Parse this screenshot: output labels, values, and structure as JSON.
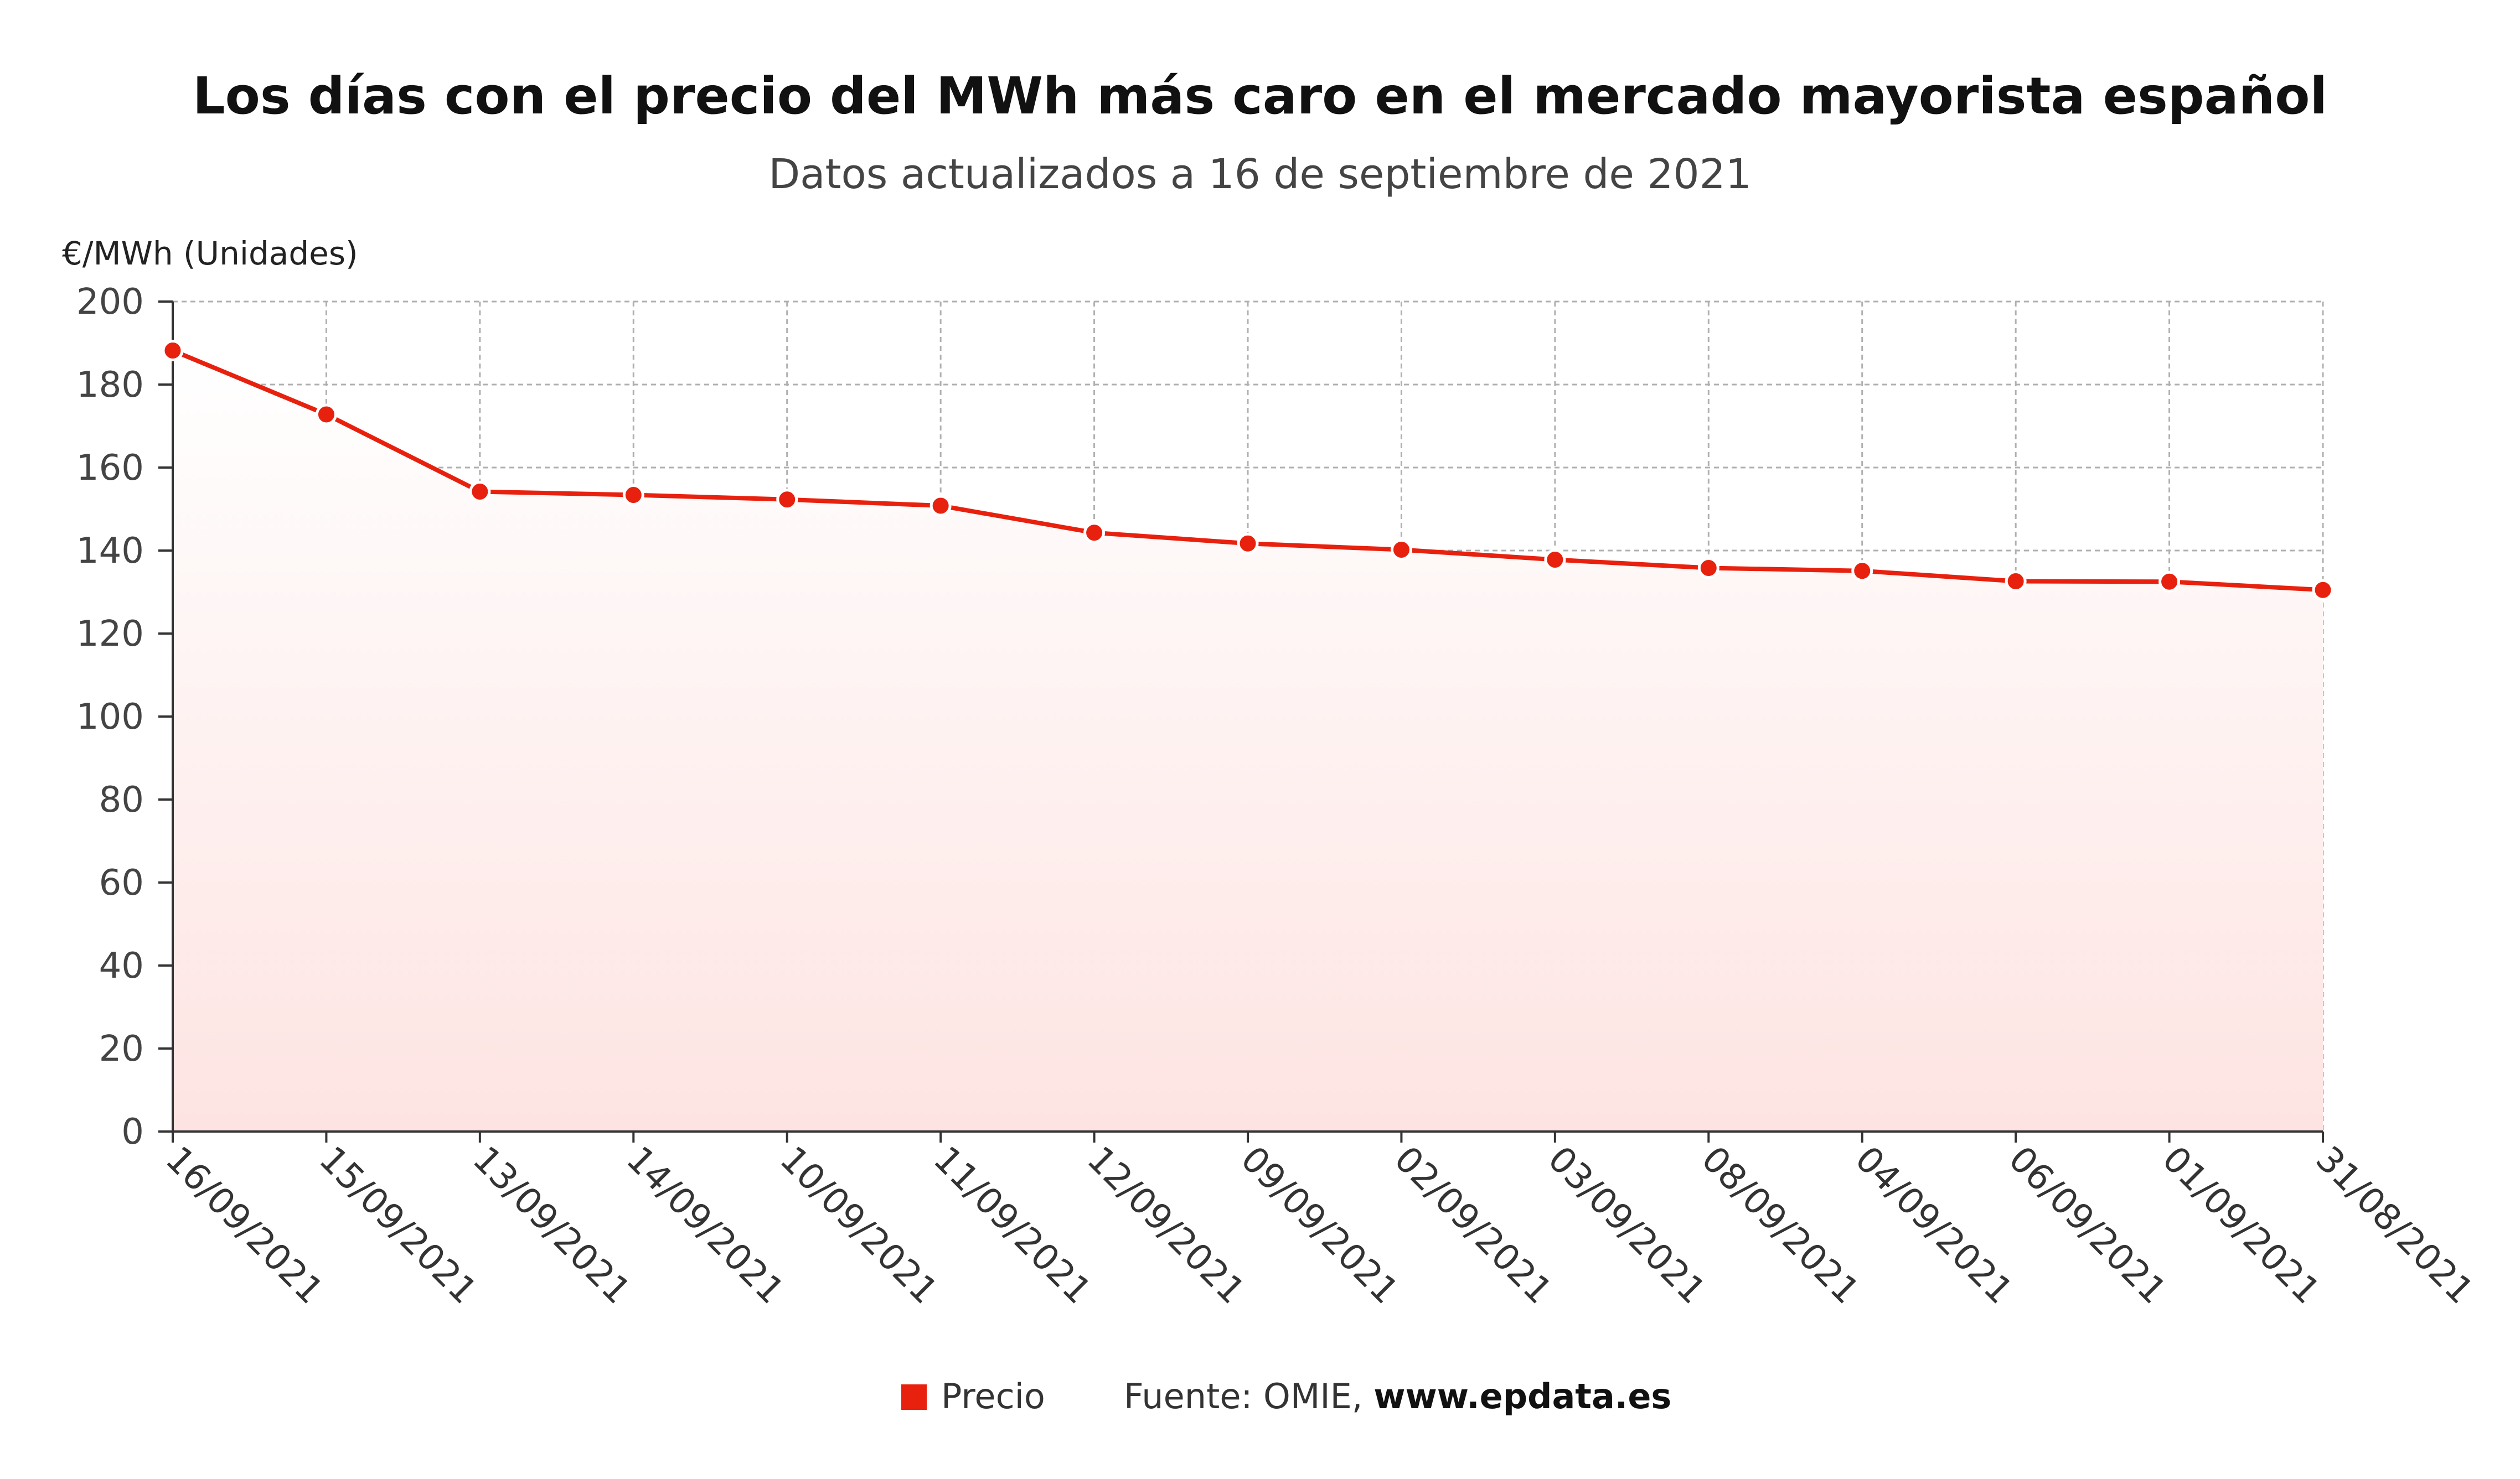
{
  "chart_data": {
    "type": "area",
    "title": "Los días con el precio del MWh más caro en el mercado mayorista español",
    "subtitle": "Datos actualizados a 16 de septiembre de 2021",
    "ylabel": "€/MWh (Unidades)",
    "xlabel": "",
    "ylim": [
      0,
      200
    ],
    "yticks": [
      0,
      20,
      40,
      60,
      80,
      100,
      120,
      140,
      160,
      180,
      200
    ],
    "grid": true,
    "legend_position": "bottom",
    "categories": [
      "16/09/2021",
      "15/09/2021",
      "13/09/2021",
      "14/09/2021",
      "10/09/2021",
      "11/09/2021",
      "12/09/2021",
      "09/09/2021",
      "02/09/2021",
      "03/09/2021",
      "08/09/2021",
      "04/09/2021",
      "06/09/2021",
      "01/09/2021",
      "31/08/2021"
    ],
    "series": [
      {
        "name": "Precio",
        "color": "#e8210f",
        "values": [
          188.2,
          172.8,
          154.2,
          153.4,
          152.3,
          150.8,
          144.3,
          141.7,
          140.2,
          137.8,
          135.8,
          135.1,
          132.6,
          132.5,
          130.5
        ]
      }
    ]
  },
  "footer": {
    "legend_label": "Precio",
    "source_prefix": "Fuente: OMIE, ",
    "source_link": "www.epdata.es"
  },
  "colors": {
    "series": "#e8210f",
    "grid": "#b0b0b0",
    "axis": "#333333"
  }
}
